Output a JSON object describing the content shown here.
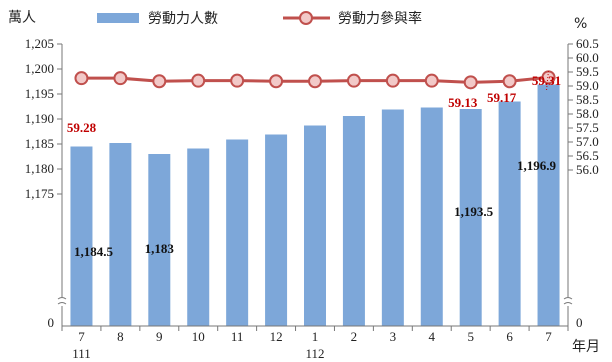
{
  "chart_data": {
    "type": "bar",
    "categories": [
      "7",
      "8",
      "9",
      "10",
      "11",
      "12",
      "1",
      "2",
      "3",
      "4",
      "5",
      "6",
      "7"
    ],
    "year_labels": [
      {
        "index": 0,
        "text": "111"
      },
      {
        "index": 6,
        "text": "112"
      }
    ],
    "x_unit": "年月",
    "series": [
      {
        "name": "勞動力人數",
        "axis": "left",
        "type": "bar",
        "color": "#7da7d9",
        "values": [
          1184.5,
          1185.2,
          1183.0,
          1184.1,
          1185.9,
          1186.9,
          1188.7,
          1190.6,
          1191.9,
          1192.3,
          1192.0,
          1193.5,
          1196.9
        ]
      },
      {
        "name": "勞動力參與率",
        "axis": "right",
        "type": "line",
        "color": "#c0504d",
        "values": [
          59.28,
          59.28,
          59.17,
          59.19,
          59.19,
          59.17,
          59.17,
          59.19,
          59.19,
          59.19,
          59.13,
          59.17,
          59.31
        ]
      }
    ],
    "bar_data_labels": [
      {
        "index": 0,
        "text": "1,184.5"
      },
      {
        "index": 2,
        "text": "1,183"
      },
      {
        "index": 11,
        "text": "1,193.5"
      },
      {
        "index": 12,
        "text": "1,196.9"
      }
    ],
    "line_data_labels": [
      {
        "index": 0,
        "text": "59.28"
      },
      {
        "index": 10,
        "text": "59.13"
      },
      {
        "index": 11,
        "text": "59.17"
      },
      {
        "index": 12,
        "text": "59.31"
      }
    ],
    "left_axis": {
      "unit": "萬人",
      "ylim": [
        1170,
        1205
      ],
      "ticks": [
        "1,205",
        "1,200",
        "1,195",
        "1,190",
        "1,185",
        "1,180",
        "1,175"
      ],
      "tick_values": [
        1205,
        1200,
        1195,
        1190,
        1185,
        1180,
        1175
      ],
      "zero_label": "0"
    },
    "right_axis": {
      "unit": "%",
      "ylim": [
        55.5,
        60.5
      ],
      "ticks": [
        "60.5",
        "60.0",
        "59.5",
        "59.0",
        "58.5",
        "58.0",
        "57.5",
        "57.0",
        "56.5",
        "56.0"
      ],
      "tick_values": [
        60.5,
        60.0,
        59.5,
        59.0,
        58.5,
        58.0,
        57.5,
        57.0,
        56.5,
        56.0
      ],
      "zero_label": "0"
    },
    "legend_placement": "top",
    "axis_break": true,
    "grid": false
  }
}
